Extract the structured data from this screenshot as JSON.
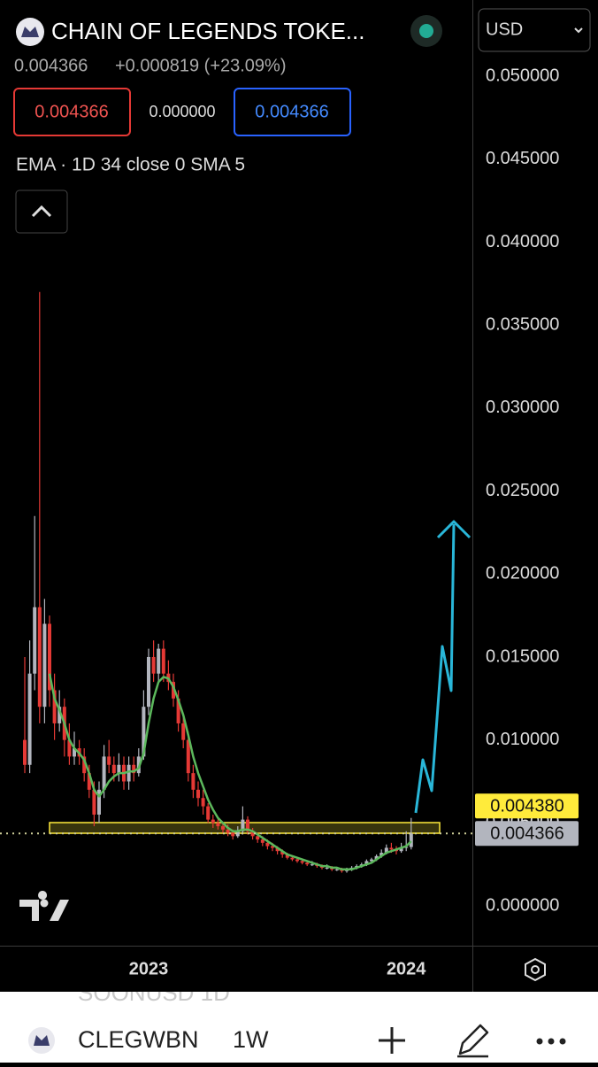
{
  "header": {
    "title": "CHAIN OF LEGENDS TOKE...",
    "price": "0.004366",
    "change": "+0.000819 (+23.09%)",
    "sell": "0.004366",
    "spread": "0.000000",
    "buy": "0.004366",
    "currency": "USD"
  },
  "footer": {
    "symbol": "CLEGWBN",
    "interval": "1W",
    "previous": "SOONUSD  1D"
  },
  "chart_data": {
    "type": "candlestick",
    "indicator_label": "EMA · 1D 34 close 0 SMA 5",
    "color_up": "#b2b5be",
    "color_down": "#e53935",
    "grid": false,
    "categories": [
      null,
      null,
      null,
      null,
      null,
      null,
      null,
      null,
      null,
      null,
      null,
      null,
      null,
      null,
      null,
      null,
      null,
      null,
      null,
      null,
      null,
      null,
      null,
      null,
      null,
      "2023",
      null,
      null,
      null,
      null,
      null,
      null,
      null,
      null,
      null,
      null,
      null,
      null,
      null,
      null,
      null,
      null,
      null,
      null,
      null,
      null,
      null,
      null,
      null,
      null,
      null,
      null,
      null,
      null,
      null,
      null,
      null,
      null,
      null,
      null,
      null,
      null,
      null,
      null,
      null,
      null,
      null,
      null,
      null,
      null,
      null,
      null,
      null,
      null,
      null,
      null,
      null,
      "2024",
      null
    ],
    "open": [
      0.01,
      0.0085,
      0.014,
      0.018,
      0.012,
      0.017,
      0.013,
      0.011,
      0.012,
      0.01,
      0.009,
      0.0095,
      0.009,
      0.008,
      0.007,
      0.0055,
      0.007,
      0.009,
      0.0085,
      0.008,
      0.0085,
      0.0075,
      0.0085,
      0.008,
      0.009,
      0.012,
      0.015,
      0.014,
      0.0155,
      0.014,
      0.0135,
      0.0125,
      0.011,
      0.01,
      0.008,
      0.007,
      0.0065,
      0.006,
      0.0052,
      0.005,
      0.0048,
      0.0046,
      0.0044,
      0.0042,
      0.0045,
      0.0052,
      0.0045,
      0.0042,
      0.004,
      0.0038,
      0.0036,
      0.0035,
      0.0033,
      0.0031,
      0.0029,
      0.0028,
      0.0027,
      0.0026,
      0.0025,
      0.0025,
      0.0024,
      0.0023,
      0.0023,
      0.0022,
      0.0022,
      0.0021,
      0.0022,
      0.0023,
      0.0024,
      0.0025,
      0.0027,
      0.0028,
      0.003,
      0.0032,
      0.0035,
      0.0034,
      0.0033,
      0.0035,
      0.003547
    ],
    "high": [
      0.015,
      0.016,
      0.0235,
      0.037,
      0.0185,
      0.0175,
      0.014,
      0.013,
      0.0125,
      0.011,
      0.0105,
      0.01,
      0.0095,
      0.0085,
      0.0075,
      0.0075,
      0.0097,
      0.01,
      0.009,
      0.0092,
      0.009,
      0.009,
      0.009,
      0.0095,
      0.013,
      0.0155,
      0.016,
      0.0158,
      0.016,
      0.0148,
      0.014,
      0.013,
      0.0115,
      0.0105,
      0.0085,
      0.0075,
      0.007,
      0.0062,
      0.0055,
      0.0053,
      0.005,
      0.0049,
      0.0046,
      0.0048,
      0.006,
      0.0054,
      0.0047,
      0.0044,
      0.0042,
      0.004,
      0.0038,
      0.0036,
      0.0034,
      0.0032,
      0.003,
      0.0029,
      0.0028,
      0.0027,
      0.0027,
      0.0026,
      0.0025,
      0.0025,
      0.0024,
      0.0023,
      0.0023,
      0.0023,
      0.0024,
      0.0025,
      0.0026,
      0.0028,
      0.0029,
      0.0031,
      0.0034,
      0.0037,
      0.0038,
      0.0036,
      0.0038,
      0.0045,
      0.0053
    ],
    "low": [
      0.008,
      0.008,
      0.013,
      0.011,
      0.011,
      0.012,
      0.01,
      0.0105,
      0.009,
      0.0085,
      0.0085,
      0.0085,
      0.0075,
      0.0065,
      0.0048,
      0.005,
      0.0065,
      0.008,
      0.0075,
      0.0075,
      0.007,
      0.007,
      0.0075,
      0.0078,
      0.0088,
      0.0115,
      0.0135,
      0.0135,
      0.0135,
      0.013,
      0.012,
      0.0105,
      0.0095,
      0.0075,
      0.0065,
      0.006,
      0.0055,
      0.005,
      0.0047,
      0.0046,
      0.0044,
      0.0042,
      0.004,
      0.0041,
      0.0043,
      0.0043,
      0.004,
      0.0038,
      0.0036,
      0.0034,
      0.0033,
      0.0031,
      0.0029,
      0.0028,
      0.0027,
      0.0026,
      0.0025,
      0.0024,
      0.0024,
      0.0023,
      0.0022,
      0.0022,
      0.0021,
      0.0021,
      0.002,
      0.002,
      0.0021,
      0.0022,
      0.0023,
      0.0024,
      0.0026,
      0.0027,
      0.0029,
      0.0031,
      0.0032,
      0.0031,
      0.0032,
      0.0033,
      0.0034
    ],
    "close": [
      0.0085,
      0.014,
      0.018,
      0.012,
      0.017,
      0.013,
      0.011,
      0.012,
      0.01,
      0.009,
      0.0095,
      0.009,
      0.008,
      0.007,
      0.0055,
      0.007,
      0.009,
      0.0085,
      0.008,
      0.0085,
      0.0075,
      0.0085,
      0.008,
      0.009,
      0.012,
      0.015,
      0.014,
      0.0155,
      0.014,
      0.0135,
      0.0125,
      0.011,
      0.01,
      0.008,
      0.007,
      0.0065,
      0.006,
      0.0052,
      0.005,
      0.0048,
      0.0046,
      0.0044,
      0.0042,
      0.0045,
      0.0052,
      0.0045,
      0.0042,
      0.004,
      0.0038,
      0.0036,
      0.0035,
      0.0033,
      0.0031,
      0.0029,
      0.0028,
      0.0027,
      0.0026,
      0.0025,
      0.0025,
      0.0024,
      0.0023,
      0.0023,
      0.0022,
      0.0022,
      0.0021,
      0.0022,
      0.0023,
      0.0024,
      0.0025,
      0.0027,
      0.0028,
      0.003,
      0.0032,
      0.0035,
      0.0034,
      0.0033,
      0.0035,
      0.003547,
      0.004366
    ],
    "ema": {
      "color": "#5cb85c",
      "values": [
        null,
        null,
        null,
        null,
        null,
        0.014,
        0.0125,
        0.0118,
        0.011,
        0.01,
        0.0095,
        0.0092,
        0.0088,
        0.008,
        0.007,
        0.0066,
        0.007,
        0.0075,
        0.0078,
        0.008,
        0.008,
        0.0081,
        0.0081,
        0.0083,
        0.0092,
        0.011,
        0.0125,
        0.0135,
        0.0138,
        0.0137,
        0.0132,
        0.0124,
        0.0115,
        0.0103,
        0.009,
        0.008,
        0.0072,
        0.0064,
        0.0058,
        0.0053,
        0.005,
        0.0047,
        0.0045,
        0.0045,
        0.0046,
        0.0046,
        0.0045,
        0.0043,
        0.0041,
        0.0039,
        0.0037,
        0.0035,
        0.0033,
        0.0031,
        0.003,
        0.0029,
        0.0028,
        0.0027,
        0.0026,
        0.0025,
        0.0024,
        0.0024,
        0.0023,
        0.0023,
        0.0022,
        0.0022,
        0.0022,
        0.0023,
        0.0024,
        0.0025,
        0.0026,
        0.0028,
        0.003,
        0.0032,
        0.0033,
        0.0034,
        0.0035,
        0.0036,
        0.0039
      ]
    },
    "ylim": [
      -0.0024,
      0.0546
    ],
    "yticks": [
      {
        "value": 0,
        "label": "0.000000"
      },
      {
        "value": 0.005,
        "label": "0.005000"
      },
      {
        "value": 0.01,
        "label": "0.010000"
      },
      {
        "value": 0.015,
        "label": "0.015000"
      },
      {
        "value": 0.02,
        "label": "0.020000"
      },
      {
        "value": 0.025,
        "label": "0.025000"
      },
      {
        "value": 0.03,
        "label": "0.030000"
      },
      {
        "value": 0.035,
        "label": "0.035000"
      },
      {
        "value": 0.04,
        "label": "0.040000"
      },
      {
        "value": 0.045,
        "label": "0.045000"
      },
      {
        "value": 0.05,
        "label": "0.050000"
      }
    ],
    "price_tags": [
      {
        "value": 0.00438,
        "label": "0.004380",
        "color": "#ffeb3b"
      },
      {
        "value": 0.004366,
        "label": "0.004366",
        "color": "#b2b5be"
      }
    ]
  }
}
